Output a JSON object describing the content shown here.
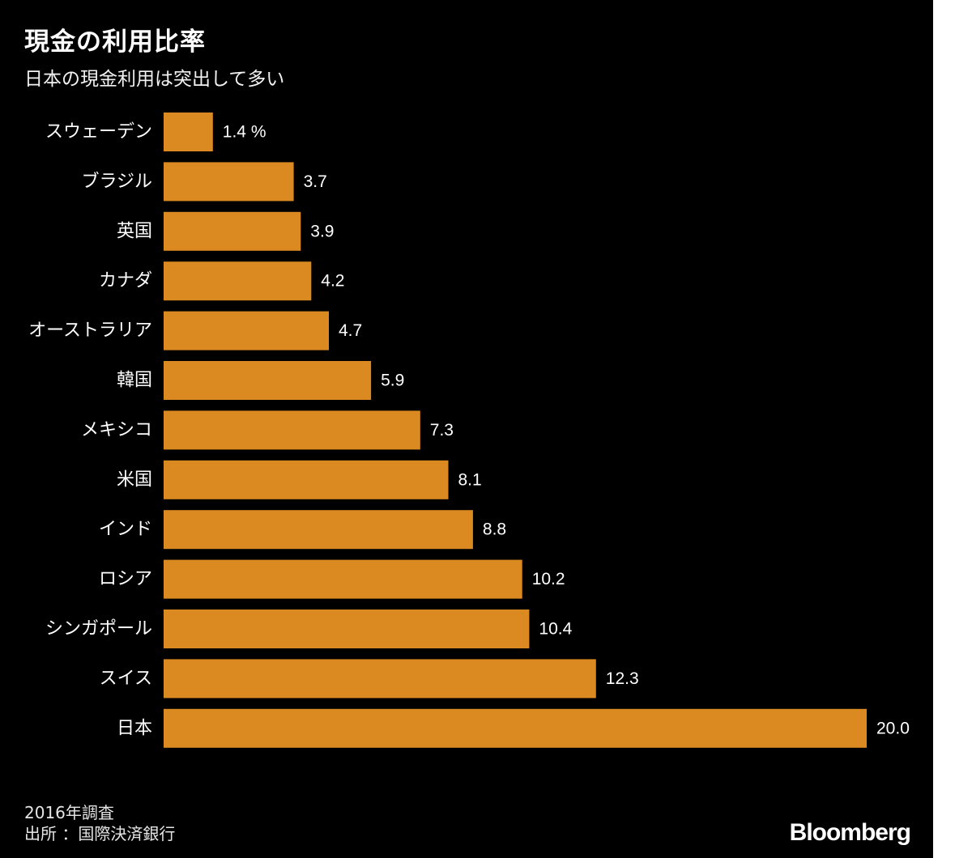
{
  "header": {
    "title": "現金の利用比率",
    "subtitle": "日本の現金利用は突出して多い"
  },
  "chart_data": {
    "type": "bar",
    "orientation": "horizontal",
    "title": "現金の利用比率",
    "subtitle": "日本の現金利用は突出して多い",
    "unit": "%",
    "first_value_suffix": " %",
    "categories": [
      "スウェーデン",
      "ブラジル",
      "英国",
      "カナダ",
      "オーストラリア",
      "韓国",
      "メキシコ",
      "米国",
      "インド",
      "ロシア",
      "シンガポール",
      "スイス",
      "日本"
    ],
    "values": [
      1.4,
      3.7,
      3.9,
      4.2,
      4.7,
      5.9,
      7.3,
      8.1,
      8.8,
      10.2,
      10.4,
      12.3,
      20.0
    ],
    "value_labels": [
      "1.4",
      "3.7",
      "3.9",
      "4.2",
      "4.7",
      "5.9",
      "7.3",
      "8.1",
      "8.8",
      "10.2",
      "10.4",
      "12.3",
      "20.0"
    ],
    "xlim": [
      0,
      20
    ],
    "bar_color": "#db8a22",
    "grid": false
  },
  "footer": {
    "note": "2016年調査",
    "source": "出所 ：国際決済銀行",
    "brand": "Bloomberg"
  },
  "colors": {
    "background": "#000000",
    "text": "#ffffff",
    "bar": "#db8a22"
  }
}
